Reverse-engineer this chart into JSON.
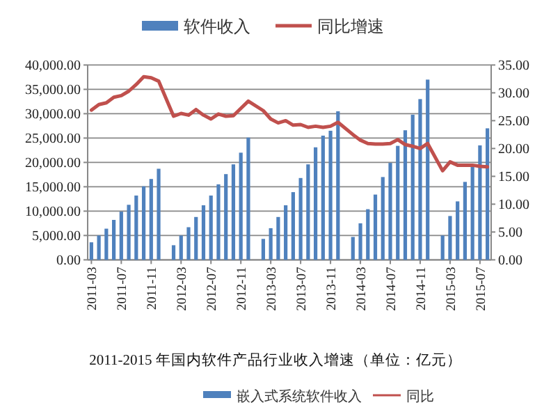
{
  "chart_data": {
    "type": "bar",
    "title": "2011-2015 年国内软件产品行业收入增速（单位：亿元）",
    "categories": [
      "2011-03",
      null,
      null,
      null,
      "2011-07",
      null,
      null,
      null,
      "2011-11",
      null,
      null,
      null,
      "2012-03",
      null,
      null,
      null,
      "2012-07",
      null,
      null,
      null,
      "2012-11",
      null,
      null,
      null,
      "2013-03",
      null,
      null,
      null,
      "2013-07",
      null,
      null,
      null,
      "2013-11",
      null,
      null,
      null,
      "2014-03",
      null,
      null,
      null,
      "2014-07",
      null,
      null,
      null,
      "2014-11",
      null,
      null,
      null,
      "2015-03",
      null,
      null,
      null,
      "2015-07",
      null
    ],
    "series": [
      {
        "name": "软件收入",
        "color": "#4f81bd",
        "values": [
          3600,
          5000,
          6400,
          8200,
          9900,
          11300,
          13200,
          15100,
          16600,
          18700,
          null,
          3000,
          5000,
          6700,
          8800,
          11200,
          13200,
          15500,
          17600,
          19600,
          22000,
          25100,
          null,
          4300,
          6500,
          8800,
          11200,
          13900,
          16800,
          19600,
          23100,
          25500,
          26500,
          30500,
          null,
          4700,
          7500,
          10400,
          13400,
          17000,
          19900,
          23400,
          26600,
          29800,
          33000,
          37000,
          null,
          5000,
          9000,
          12000,
          16000,
          19500,
          23500,
          27000
        ]
      },
      {
        "name": "同比增速",
        "type": "line",
        "axis": "y2",
        "color": "#c0504d",
        "values": [
          26.9,
          27.9,
          28.2,
          29.2,
          29.5,
          30.3,
          31.5,
          32.9,
          32.7,
          32.1,
          null,
          25.8,
          26.3,
          26.0,
          27.0,
          26.0,
          25.3,
          26.2,
          25.8,
          25.9,
          27.2,
          28.5,
          null,
          26.8,
          25.3,
          24.6,
          25.0,
          24.2,
          24.3,
          23.8,
          24.0,
          23.8,
          24.0,
          24.7,
          null,
          22.5,
          21.5,
          20.9,
          20.8,
          20.8,
          20.9,
          21.6,
          20.7,
          20.4,
          20.0,
          20.9,
          null,
          16.0,
          17.6,
          17.0,
          17.0,
          17.0,
          16.8,
          16.7
        ]
      }
    ],
    "ylim": [
      0,
      40000
    ],
    "yticks": [
      {
        "value": 0,
        "label": "0.00"
      },
      {
        "value": 5000,
        "label": "5,000.00"
      },
      {
        "value": 10000,
        "label": "10,000.00"
      },
      {
        "value": 15000,
        "label": "15,000.00"
      },
      {
        "value": 20000,
        "label": "20,000.00"
      },
      {
        "value": 25000,
        "label": "25,000.00"
      },
      {
        "value": 30000,
        "label": "30,000.00"
      },
      {
        "value": 35000,
        "label": "35,000.00"
      },
      {
        "value": 40000,
        "label": "40,000.00"
      }
    ],
    "y2lim": [
      0,
      35
    ],
    "y2ticks": [
      {
        "value": 0,
        "label": "0.00"
      },
      {
        "value": 5,
        "label": "5.00"
      },
      {
        "value": 10,
        "label": "10.00"
      },
      {
        "value": 15,
        "label": "15.00"
      },
      {
        "value": 20,
        "label": "20.00"
      },
      {
        "value": 25,
        "label": "25.00"
      },
      {
        "value": 30,
        "label": "30.00"
      },
      {
        "value": 35,
        "label": "35.00"
      }
    ],
    "grid": "y",
    "legend": "top",
    "marker": "none",
    "annotations": [
      "嵌入式系统软件收入",
      "同比"
    ]
  }
}
